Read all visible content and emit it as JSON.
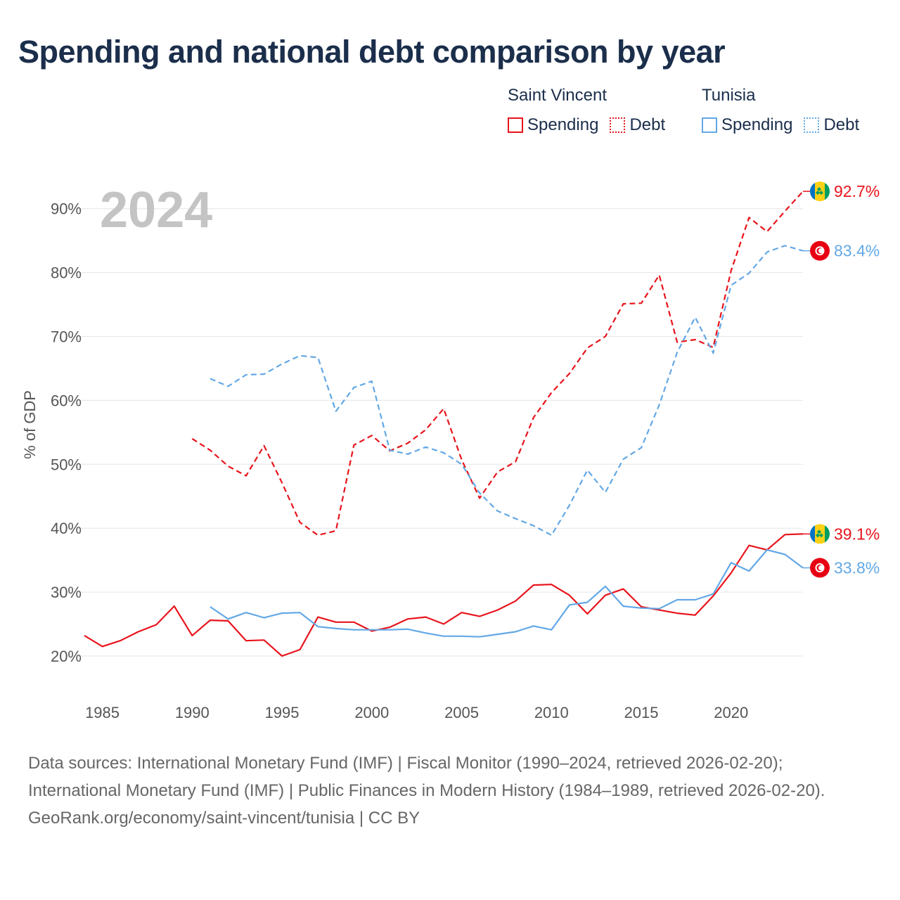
{
  "title": "Spending and national debt comparison by year",
  "legend": {
    "groups": [
      {
        "name": "Saint Vincent",
        "color": "#e8141c",
        "items": [
          {
            "label": "Spending",
            "style": "solid"
          },
          {
            "label": "Debt",
            "style": "dotted"
          }
        ]
      },
      {
        "name": "Tunisia",
        "color": "#63a8e6",
        "items": [
          {
            "label": "Spending",
            "style": "solid"
          },
          {
            "label": "Debt",
            "style": "dotted"
          }
        ]
      }
    ]
  },
  "footer": {
    "sources": "Data sources: International Monetary Fund (IMF) | Fiscal Monitor (1990–2024, retrieved 2026-02-20); International Monetary Fund (IMF) | Public Finances in Modern History (1984–1989, retrieved 2026-02-20).",
    "attribution": "GeoRank.org/economy/saint-vincent/tunisia | CC BY"
  },
  "chart_data": {
    "type": "line",
    "year_label": "2024",
    "ylabel": "% of GDP",
    "xlim": [
      1984,
      2024
    ],
    "ylim": [
      20,
      92.7
    ],
    "x_ticks": [
      1985,
      1990,
      1995,
      2000,
      2005,
      2010,
      2015,
      2020
    ],
    "y_ticks": [
      20,
      30,
      40,
      50,
      60,
      70,
      80,
      90
    ],
    "y_tick_labels": [
      "20%",
      "30%",
      "40%",
      "50%",
      "60%",
      "70%",
      "80%",
      "90%"
    ],
    "series": [
      {
        "name": "Saint Vincent Debt",
        "country": "Saint Vincent",
        "metric": "Debt",
        "color": "#e8141c",
        "dash": true,
        "end_label": "92.7%",
        "flag": "saint-vincent-flag-icon",
        "start_year": 1990,
        "values": [
          54.0,
          52.2,
          49.7,
          48.2,
          52.9,
          47.1,
          40.9,
          38.9,
          39.6,
          53.0,
          54.5,
          52.1,
          53.3,
          55.4,
          58.7,
          50.7,
          44.7,
          48.8,
          50.4,
          57.3,
          61.2,
          64.2,
          68.2,
          70.0,
          75.1,
          75.2,
          79.6,
          69.1,
          69.5,
          68.3,
          80.3,
          88.6,
          86.4,
          89.6,
          92.7
        ]
      },
      {
        "name": "Tunisia Debt",
        "country": "Tunisia",
        "metric": "Debt",
        "color": "#63a8e6",
        "dash": true,
        "end_label": "83.4%",
        "flag": "tunisia-flag-icon",
        "start_year": 1991,
        "values": [
          63.4,
          62.2,
          64.0,
          64.1,
          65.7,
          67.0,
          66.7,
          58.3,
          62.0,
          63.0,
          52.2,
          51.6,
          52.7,
          51.8,
          50.0,
          45.5,
          42.7,
          41.5,
          40.4,
          38.9,
          43.6,
          49.1,
          45.6,
          50.8,
          52.6,
          59.3,
          67.5,
          73.0,
          67.4,
          78.0,
          79.9,
          83.2,
          84.2,
          83.4
        ]
      },
      {
        "name": "Saint Vincent Spending",
        "country": "Saint Vincent",
        "metric": "Spending",
        "color": "#e8141c",
        "dash": false,
        "end_label": "39.1%",
        "flag": "saint-vincent-flag-icon",
        "start_year": 1984,
        "values": [
          23.2,
          21.5,
          22.4,
          23.8,
          24.9,
          27.8,
          23.2,
          25.6,
          25.5,
          22.4,
          22.5,
          20.0,
          21.0,
          26.1,
          25.3,
          25.3,
          23.9,
          24.5,
          25.8,
          26.1,
          25.0,
          26.8,
          26.2,
          27.2,
          28.6,
          31.1,
          31.2,
          29.5,
          26.6,
          29.5,
          30.5,
          27.7,
          27.2,
          26.7,
          26.4,
          29.4,
          33.0,
          37.3,
          36.6,
          39.0,
          39.1
        ]
      },
      {
        "name": "Tunisia Spending",
        "country": "Tunisia",
        "metric": "Spending",
        "color": "#63a8e6",
        "dash": false,
        "end_label": "33.8%",
        "flag": "tunisia-flag-icon",
        "start_year": 1991,
        "values": [
          27.7,
          25.8,
          26.8,
          26.0,
          26.7,
          26.8,
          24.6,
          24.3,
          24.1,
          24.1,
          24.1,
          24.2,
          23.6,
          23.1,
          23.1,
          23.0,
          23.4,
          23.8,
          24.7,
          24.1,
          28.0,
          28.4,
          30.9,
          27.8,
          27.5,
          27.4,
          28.8,
          28.8,
          29.7,
          34.6,
          33.3,
          36.6,
          35.9,
          33.8
        ]
      }
    ]
  }
}
